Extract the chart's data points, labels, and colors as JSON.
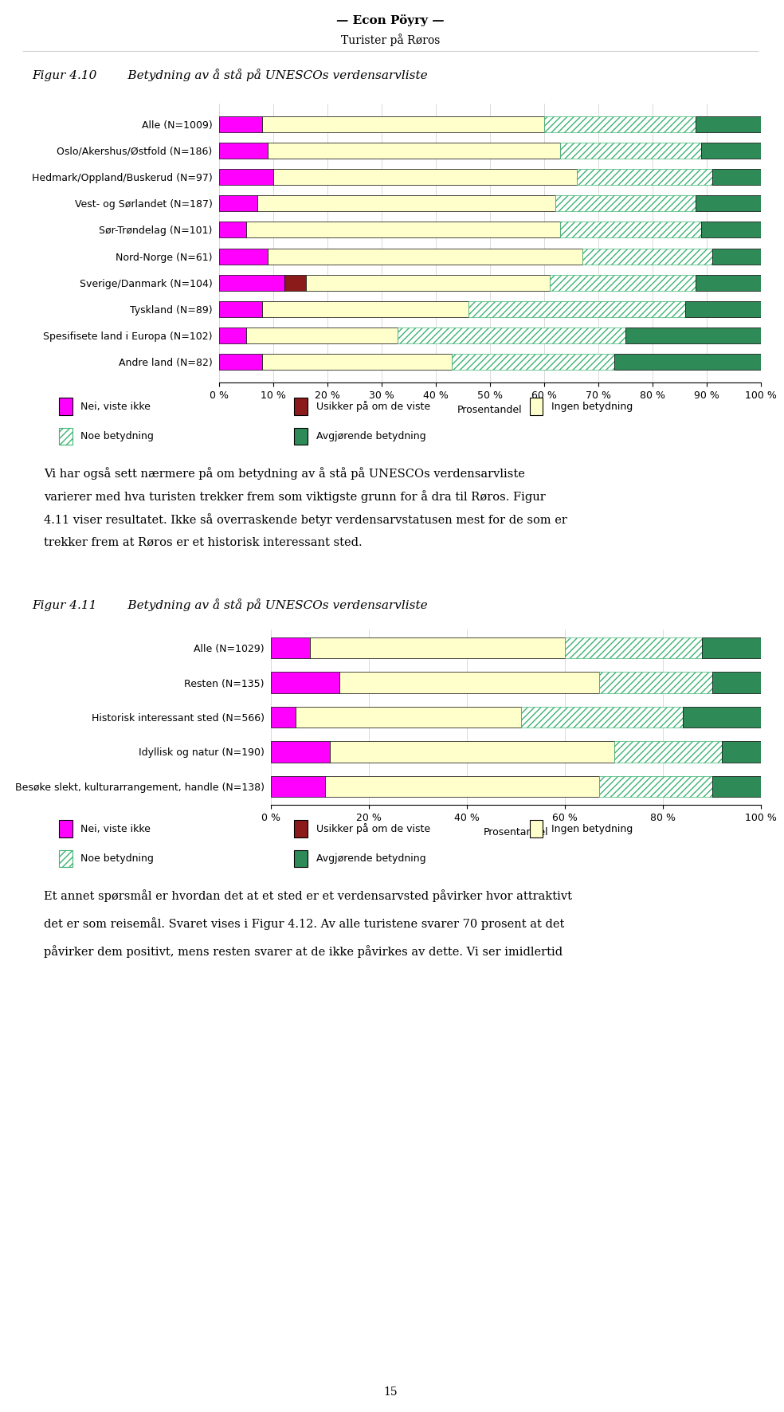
{
  "header_title": "— Econ Pöyry —",
  "header_subtitle": "Turister på Røros",
  "fig1_label": "Figur 4.10",
  "fig1_title": "Betydning av å stå på UNESCOs verdensarvliste",
  "fig2_label": "Figur 4.11",
  "fig2_title": "Betydning av å stå på UNESCOs verdensarvliste",
  "fig1_categories": [
    "Alle (N=1009)",
    "Oslo/Akershus/Østfold (N=186)",
    "Hedmark/Oppland/Buskerud (N=97)",
    "Vest- og Sørlandet (N=187)",
    "Sør-Trøndelag (N=101)",
    "Nord-Norge (N=61)",
    "Sverige/Danmark (N=104)",
    "Tyskland (N=89)",
    "Spesifisete land i Europa (N=102)",
    "Andre land (N=82)"
  ],
  "fig1_nei": [
    8,
    9,
    10,
    7,
    5,
    9,
    12,
    8,
    5,
    8
  ],
  "fig1_usikker": [
    0,
    0,
    0,
    0,
    0,
    0,
    4,
    0,
    0,
    0
  ],
  "fig1_ingen": [
    52,
    54,
    56,
    55,
    58,
    58,
    45,
    38,
    28,
    35
  ],
  "fig1_noe": [
    28,
    26,
    25,
    26,
    26,
    24,
    27,
    40,
    42,
    30
  ],
  "fig1_avg": [
    12,
    11,
    9,
    12,
    11,
    9,
    12,
    14,
    25,
    27
  ],
  "fig2_categories": [
    "Alle (N=1029)",
    "Resten (N=135)",
    "Historisk interessant sted (N=566)",
    "Idyllisk og natur (N=190)",
    "Besøke slekt, kulturarrangement, handle (N=138)"
  ],
  "fig2_nei": [
    8,
    14,
    5,
    12,
    11
  ],
  "fig2_usikker": [
    0,
    0,
    0,
    0,
    0
  ],
  "fig2_ingen": [
    52,
    53,
    46,
    58,
    56
  ],
  "fig2_noe": [
    28,
    23,
    33,
    22,
    23
  ],
  "fig2_avg": [
    12,
    10,
    16,
    8,
    10
  ],
  "nei_color": "#FF00FF",
  "usikker_color": "#8B1A1A",
  "ingen_color": "#FFFFCC",
  "noe_color": "#FFFFFF",
  "noe_edge": "#3CB371",
  "avg_color": "#2E8B57",
  "xlabel": "Prosentandel",
  "fig1_xticks": [
    0,
    10,
    20,
    30,
    40,
    50,
    60,
    70,
    80,
    90,
    100
  ],
  "fig1_xtick_labels": [
    "0 %",
    "10 %",
    "20 %",
    "30 %",
    "40 %",
    "50 %",
    "60 %",
    "70 %",
    "80 %",
    "90 %",
    "100 %"
  ],
  "fig2_xticks": [
    0,
    20,
    40,
    60,
    80,
    100
  ],
  "fig2_xtick_labels": [
    "0 %",
    "20 %",
    "40 %",
    "60 %",
    "80 %",
    "100 %"
  ],
  "leg_row1": [
    [
      "nei",
      "Nei, viste ikke"
    ],
    [
      "usikker",
      "Usikker på om de viste"
    ],
    [
      "ingen",
      "Ingen betydning"
    ]
  ],
  "leg_row2": [
    [
      "noe",
      "Noe betydning"
    ],
    [
      "avg",
      "Avgjørende betydning"
    ]
  ],
  "body_text1": [
    "Vi har også sett nærmere på om betydning av å stå på UNESCOs verdensarvliste",
    "varierer med hva turisten trekker frem som viktigste grunn for å dra til Røros. Figur",
    "4.11 viser resultatet. Ikke så overraskende betyr verdensarvstatusen mest for de som er",
    "trekker frem at Røros er et historisk interessant sted."
  ],
  "body_text2": [
    "Et annet spørsmål er hvordan det at et sted er et verdensarvsted påvirker hvor attraktivt",
    "det er som reisemål. Svaret vises i Figur 4.12. Av alle turistene svarer 70 prosent at det",
    "påvirker dem positivt, mens resten svarer at de ikke påvirkes av dette. Vi ser imidlertid"
  ],
  "page_num": "15"
}
